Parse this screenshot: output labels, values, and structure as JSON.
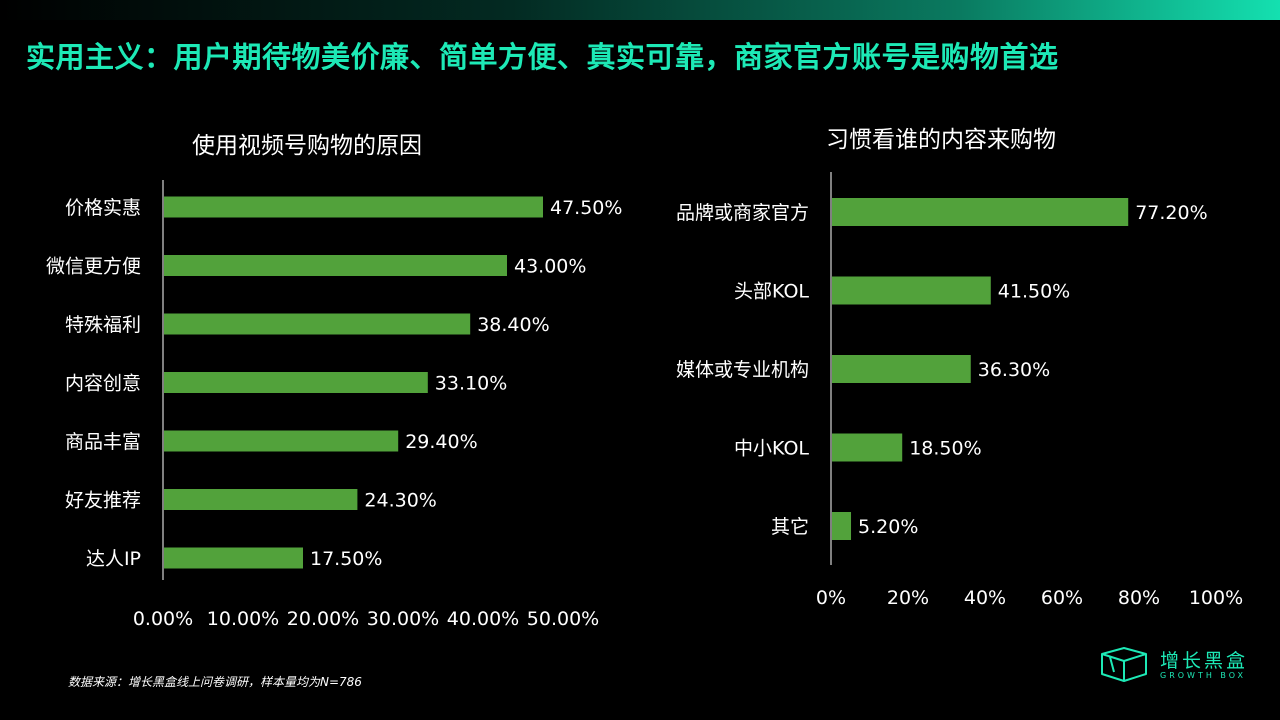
{
  "headline": "实用主义：用户期待物美价廉、简单方便、真实可靠，商家官方账号是购物首选",
  "footnote": "数据来源：增长黑盒线上问卷调研，样本量均为N=786",
  "logo": {
    "name": "增长黑盒",
    "sub": "GROWTH BOX",
    "icon": "box-icon"
  },
  "colors": {
    "bar": "#52a23b",
    "accent": "#1de9b6",
    "background": "#000000"
  },
  "chart_data": [
    {
      "type": "bar",
      "orientation": "horizontal",
      "title": "使用视频号购物的原因",
      "categories": [
        "价格实惠",
        "微信更方便",
        "特殊福利",
        "内容创意",
        "商品丰富",
        "好友推荐",
        "达人IP"
      ],
      "values": [
        47.5,
        43.0,
        38.4,
        33.1,
        29.4,
        24.3,
        17.5
      ],
      "value_labels": [
        "47.50%",
        "43.00%",
        "38.40%",
        "33.10%",
        "29.40%",
        "24.30%",
        "17.50%"
      ],
      "xlim": [
        0,
        50
      ],
      "tick_values": [
        0,
        10,
        20,
        30,
        40,
        50
      ],
      "tick_labels": [
        "0.00%",
        "10.00%",
        "20.00%",
        "30.00%",
        "40.00%",
        "50.00%"
      ],
      "grid": false
    },
    {
      "type": "bar",
      "orientation": "horizontal",
      "title": "习惯看谁的内容来购物",
      "categories": [
        "品牌或商家官方",
        "头部KOL",
        "媒体或专业机构",
        "中小KOL",
        "其它"
      ],
      "values": [
        77.2,
        41.5,
        36.3,
        18.5,
        5.2
      ],
      "value_labels": [
        "77.20%",
        "41.50%",
        "36.30%",
        "18.50%",
        "5.20%"
      ],
      "xlim": [
        0,
        100
      ],
      "tick_values": [
        0,
        20,
        40,
        60,
        80,
        100
      ],
      "tick_labels": [
        "0%",
        "20%",
        "40%",
        "60%",
        "80%",
        "100%"
      ],
      "grid": false
    }
  ]
}
